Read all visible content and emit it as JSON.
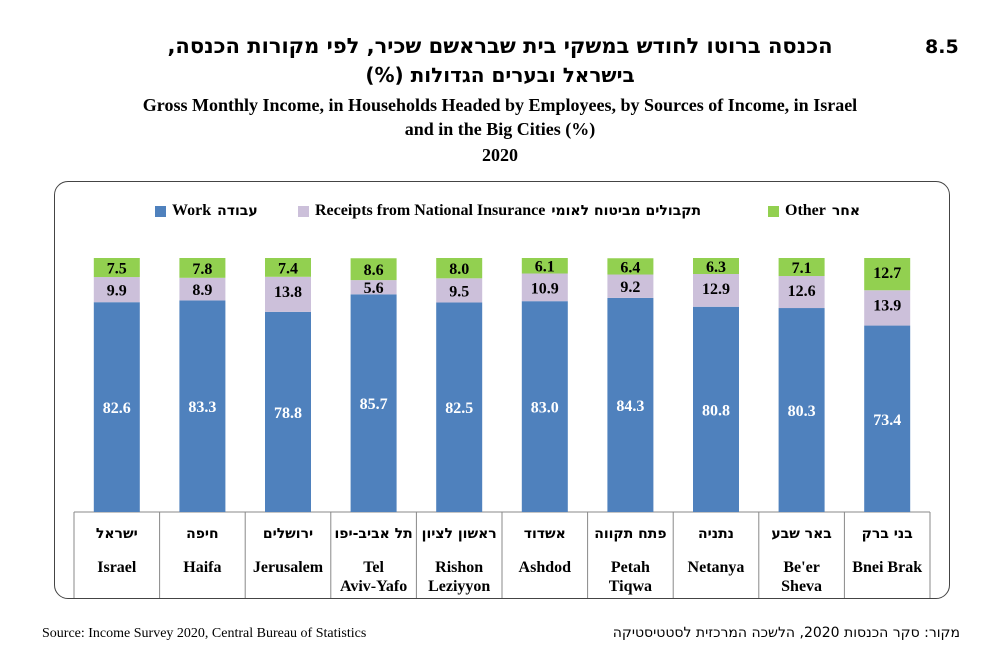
{
  "header": {
    "chart_number": "8.5",
    "title_he_line1": "הכנסה ברוטו לחודש במשקי בית שבראשם שכיר, לפי מקורות הכנסה,",
    "title_he_line2": "בישראל ובערים הגדולות (%)",
    "title_en_line1": "Gross Monthly Income, in Households Headed by Employees, by Sources of Income, in Israel",
    "title_en_line2": "and in the Big Cities (%)",
    "year": "2020"
  },
  "legend": {
    "work_en": "Work",
    "work_he": "עבודה",
    "ni_en": "Receipts from National Insurance",
    "ni_he": "תקבולים מביטוח לאומי",
    "other_en": "Other",
    "other_he": "אחר"
  },
  "footer": {
    "source_en": "Source: Income Survey 2020, Central Bureau of Statistics",
    "source_he": "מקור: סקר הכנסות 2020, הלשכה המרכזית לסטטיסטיקה"
  },
  "colors": {
    "work": "#4f81bd",
    "ni": "#ccc0da",
    "other": "#92d050"
  },
  "chart_data": {
    "type": "bar",
    "stacked": true,
    "ylim": [
      0,
      100
    ],
    "categories": [
      {
        "he": "ישראל",
        "en": "Israel"
      },
      {
        "he": "חיפה",
        "en": "Haifa"
      },
      {
        "he": "ירושלים",
        "en": "Jerusalem"
      },
      {
        "he": "תל אביב-יפו",
        "en": "Tel Aviv-Yafo"
      },
      {
        "he": "ראשון לציון",
        "en": "Rishon Leziyyon"
      },
      {
        "he": "אשדוד",
        "en": "Ashdod"
      },
      {
        "he": "פתח תקווה",
        "en": "Petah Tiqwa"
      },
      {
        "he": "נתניה",
        "en": "Netanya"
      },
      {
        "he": "באר שבע",
        "en": "Be'er Sheva"
      },
      {
        "he": "בני ברק",
        "en": "Bnei Brak"
      }
    ],
    "series": [
      {
        "name": "Work",
        "values": [
          82.6,
          83.3,
          78.8,
          85.7,
          82.5,
          83.0,
          84.3,
          80.8,
          80.3,
          73.4
        ]
      },
      {
        "name": "Receipts from National Insurance",
        "values": [
          9.9,
          8.9,
          13.8,
          5.6,
          9.5,
          10.9,
          9.2,
          12.9,
          12.6,
          13.9
        ]
      },
      {
        "name": "Other",
        "values": [
          7.5,
          7.8,
          7.4,
          8.6,
          8.0,
          6.1,
          6.4,
          6.3,
          7.1,
          12.7
        ]
      }
    ],
    "legend_position": "top",
    "grid": false
  }
}
